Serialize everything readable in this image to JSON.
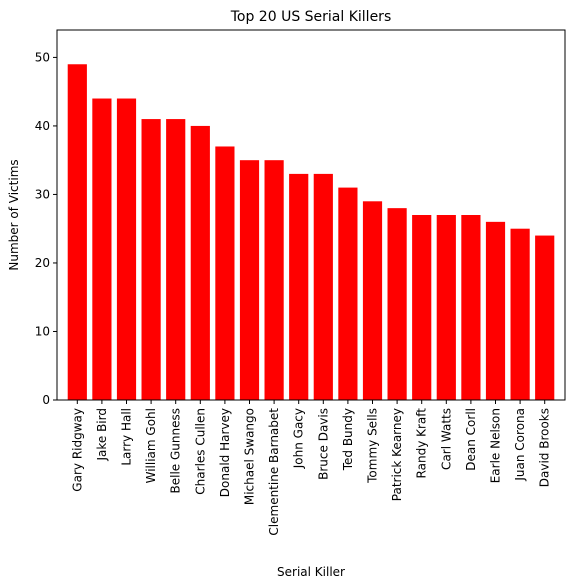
{
  "chart_data": {
    "type": "bar",
    "title": "Top 20 US Serial Killers",
    "xlabel": "Serial Killer",
    "ylabel": "Number of Victims",
    "ylim": [
      0,
      54
    ],
    "yticks": [
      0,
      10,
      20,
      30,
      40,
      50
    ],
    "grid": false,
    "bar_color": "#ff0000",
    "categories": [
      "Gary Ridgway",
      "Jake Bird",
      "Larry Hall",
      "William Gohl",
      "Belle Gunness",
      "Charles Cullen",
      "Donald Harvey",
      "Michael Swango",
      "Clementine Barnabet",
      "John Gacy",
      "Bruce Davis",
      "Ted Bundy",
      "Tommy Sells",
      "Patrick Kearney",
      "Randy Kraft",
      "Carl Watts",
      "Dean Corll",
      "Earle Nelson",
      "Juan Corona",
      "David Brooks"
    ],
    "values": [
      49,
      44,
      44,
      41,
      41,
      40,
      37,
      35,
      35,
      33,
      33,
      31,
      29,
      28,
      27,
      27,
      27,
      26,
      25,
      24
    ]
  }
}
